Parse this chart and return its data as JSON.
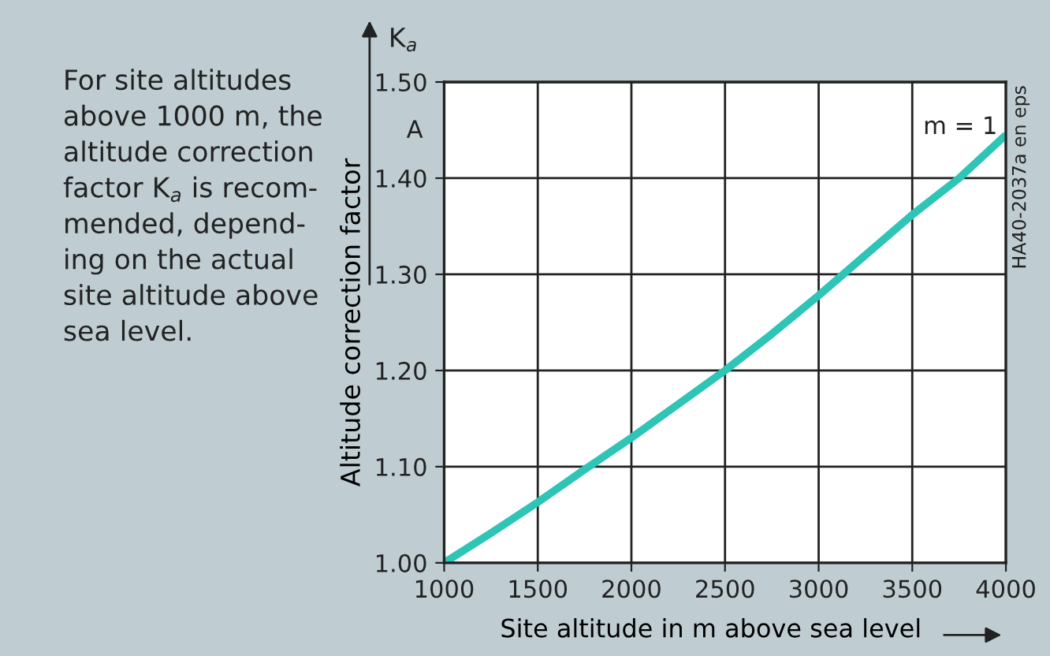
{
  "chart_data": {
    "type": "line",
    "xlabel": "Site altitude in m above sea level",
    "ylabel": "Altitude correction factor",
    "x": [
      1000,
      1250,
      1500,
      1750,
      2000,
      2250,
      2500,
      2750,
      3000,
      3250,
      3500,
      3750,
      4000
    ],
    "series": [
      {
        "color": "#2ec4b6",
        "values": [
          1.0,
          1.031,
          1.063,
          1.097,
          1.13,
          1.165,
          1.2,
          1.238,
          1.278,
          1.32,
          1.362,
          1.4,
          1.445
        ]
      }
    ],
    "xlim": [
      1000,
      4000
    ],
    "xticks": [
      1000,
      1500,
      2000,
      2500,
      3000,
      3500,
      4000
    ],
    "ylim": [
      1.0,
      1.5
    ],
    "yticks": [
      {
        "value": 1.0,
        "label": "1.00"
      },
      {
        "value": 1.1,
        "label": "1.10"
      },
      {
        "value": 1.2,
        "label": "1.20"
      },
      {
        "value": 1.3,
        "label": "1.30"
      },
      {
        "value": 1.4,
        "label": "1.40"
      },
      {
        "value": 1.5,
        "label": "1.50"
      }
    ],
    "grid": true,
    "marker": "none",
    "line_style": "solid",
    "legend": false,
    "annotations": [
      "For site altitudes\nabove 1000 m, the\naltitude correction\nfactor K$_{a}$ is recom-\nmended, depend-\ning on the actual\nsite altitude above\nsea level.",
      "K$_{a}$",
      "A",
      "m = 1",
      "HA40-2037a en eps"
    ]
  }
}
